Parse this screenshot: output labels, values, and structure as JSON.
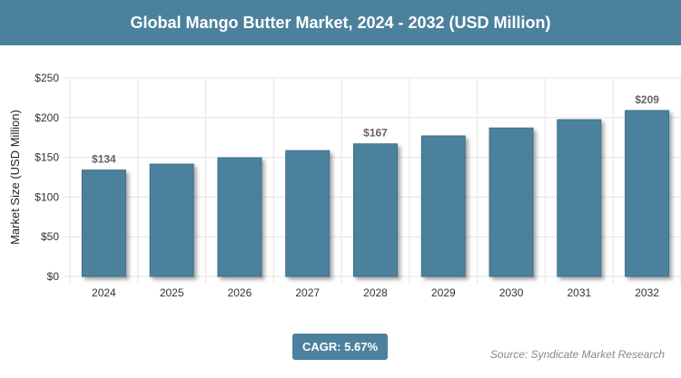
{
  "header": {
    "title": "Global Mango Butter Market, 2024 - 2032 (USD Million)"
  },
  "chart_data": {
    "type": "bar",
    "title": "Global Mango Butter Market, 2024 - 2032 (USD Million)",
    "xlabel": "",
    "ylabel": "Market Size (USD Million)",
    "categories": [
      "2024",
      "2025",
      "2026",
      "2027",
      "2028",
      "2029",
      "2030",
      "2031",
      "2032"
    ],
    "values": [
      134,
      141.5,
      149.5,
      158.5,
      167,
      177,
      187,
      197.5,
      209
    ],
    "data_labels": {
      "0": "$134",
      "4": "$167",
      "8": "$209"
    },
    "ylim": [
      0,
      250
    ],
    "yticks": [
      0,
      50,
      100,
      150,
      200,
      250
    ],
    "ytick_labels": [
      "$0",
      "$50",
      "$100",
      "$150",
      "$200",
      "$250"
    ],
    "grid": true,
    "bar_color": "#4b819d"
  },
  "footer": {
    "cagr": "CAGR: 5.67%",
    "source": "Source: Syndicate Market Research"
  }
}
